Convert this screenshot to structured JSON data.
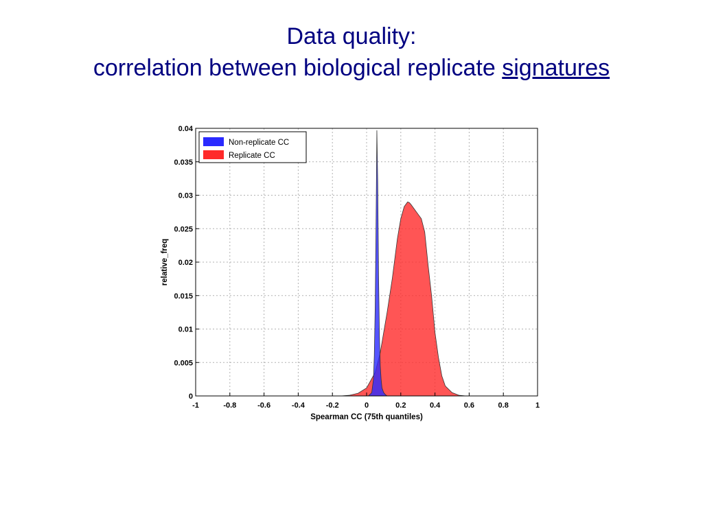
{
  "slide": {
    "title_line1": "Data quality:",
    "title_line2_prefix": "correlation between biological replicate ",
    "title_line2_link": "signatures",
    "title_color": "#000080"
  },
  "chart_data": {
    "type": "area",
    "xlabel": "Spearman CC (75th quantiles)",
    "ylabel": "relative_freq",
    "xlim": [
      -1,
      1
    ],
    "ylim": [
      0,
      0.04
    ],
    "xticks": [
      "-1",
      "-0.8",
      "-0.6",
      "-0.4",
      "-0.2",
      "0",
      "0.2",
      "0.4",
      "0.6",
      "0.8",
      "1"
    ],
    "yticks": [
      "0",
      "0.005",
      "0.01",
      "0.015",
      "0.02",
      "0.025",
      "0.03",
      "0.035",
      "0.04"
    ],
    "grid": true,
    "legend_position": "top-left",
    "series": [
      {
        "name": "Replicate CC",
        "color": "#ff2a2a",
        "x": [
          -0.15,
          -0.1,
          -0.05,
          0.0,
          0.05,
          0.08,
          0.1,
          0.12,
          0.15,
          0.18,
          0.2,
          0.22,
          0.24,
          0.25,
          0.26,
          0.28,
          0.3,
          0.32,
          0.34,
          0.36,
          0.38,
          0.4,
          0.42,
          0.44,
          0.46,
          0.5,
          0.54,
          0.58
        ],
        "y": [
          0.0,
          0.0001,
          0.0004,
          0.0012,
          0.0035,
          0.0065,
          0.0095,
          0.0125,
          0.0175,
          0.0235,
          0.0265,
          0.0283,
          0.029,
          0.0289,
          0.0286,
          0.0279,
          0.0272,
          0.0265,
          0.0245,
          0.0195,
          0.015,
          0.0095,
          0.0058,
          0.003,
          0.0015,
          0.0005,
          0.0001,
          0.0
        ]
      },
      {
        "name": "Non-replicate CC",
        "color": "#2a2aff",
        "x": [
          0.01,
          0.03,
          0.04,
          0.045,
          0.05,
          0.055,
          0.06,
          0.065,
          0.07,
          0.075,
          0.08,
          0.085,
          0.09,
          0.1,
          0.11,
          0.12
        ],
        "y": [
          0.0,
          0.0005,
          0.0025,
          0.006,
          0.013,
          0.025,
          0.0397,
          0.032,
          0.018,
          0.009,
          0.0045,
          0.0025,
          0.0012,
          0.0005,
          0.0002,
          0.0
        ]
      }
    ]
  }
}
